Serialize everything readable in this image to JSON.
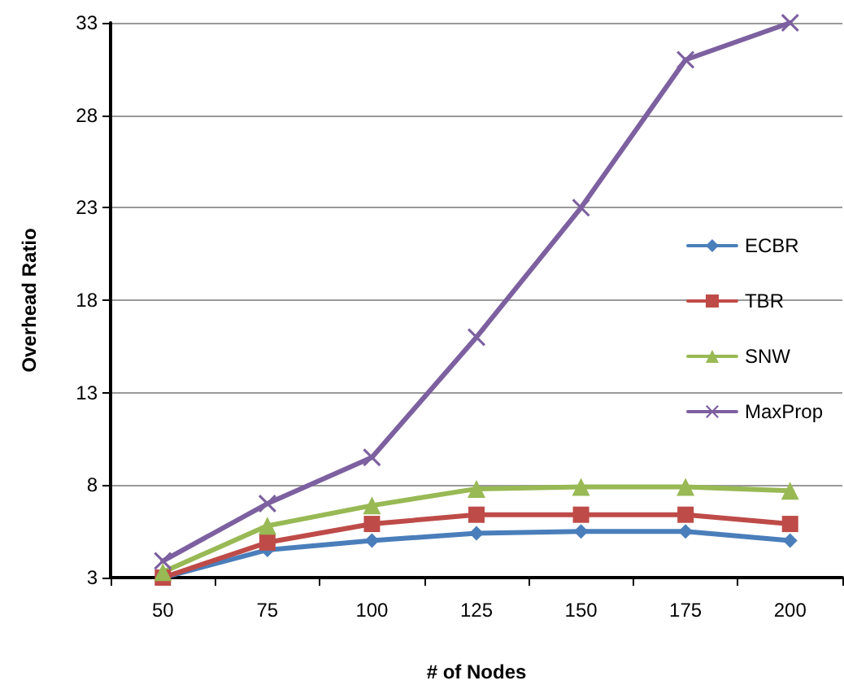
{
  "chart_data": {
    "type": "line",
    "xlabel": "# of Nodes",
    "ylabel": "Overhead Ratio",
    "categories": [
      "50",
      "75",
      "100",
      "125",
      "150",
      "175",
      "200"
    ],
    "series": [
      {
        "name": "ECBR",
        "color": "#4a7ebb",
        "marker": "diamond",
        "values": [
          3.0,
          4.5,
          5.0,
          5.4,
          5.5,
          5.5,
          5.0
        ]
      },
      {
        "name": "TBR",
        "color": "#be4b48",
        "marker": "square",
        "values": [
          3.0,
          4.9,
          5.9,
          6.4,
          6.4,
          6.4,
          5.9
        ]
      },
      {
        "name": "SNW",
        "color": "#98b954",
        "marker": "triangle",
        "values": [
          3.3,
          5.8,
          6.9,
          7.8,
          7.9,
          7.9,
          7.7
        ]
      },
      {
        "name": "MaxProp",
        "color": "#7d60a0",
        "marker": "cross",
        "values": [
          3.9,
          7.0,
          9.5,
          16.0,
          23.0,
          31.0,
          33.0
        ]
      }
    ],
    "ylim": [
      3,
      33
    ],
    "yticks": [
      3,
      8,
      13,
      18,
      23,
      28,
      33
    ],
    "grid": "y",
    "legend": "right",
    "line_style": "solid"
  }
}
